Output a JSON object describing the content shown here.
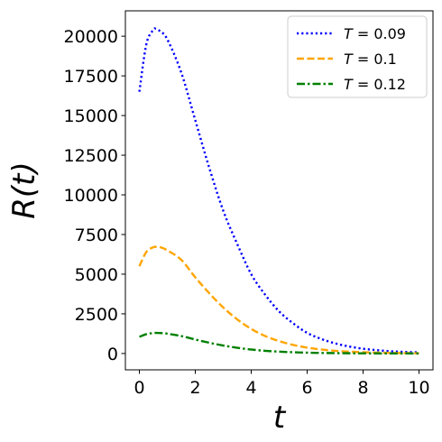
{
  "chart_data": {
    "type": "line",
    "xlabel": "t",
    "ylabel": "R(t)",
    "xlim": [
      -0.5,
      10.5
    ],
    "ylim": [
      -1030,
      21600
    ],
    "xticks": [
      0,
      2,
      4,
      6,
      8,
      10
    ],
    "yticks": [
      0,
      2500,
      5000,
      7500,
      10000,
      12500,
      15000,
      17500,
      20000
    ],
    "grid": false,
    "legend_position": "top-right",
    "series": [
      {
        "name": "T = 0.09",
        "label_var": "T",
        "label_value": "0.09",
        "color": "#0000ff",
        "style": "dotted",
        "x": [
          0,
          0.25,
          0.5,
          0.6,
          0.75,
          1,
          1.5,
          2,
          2.5,
          3,
          3.5,
          4,
          4.5,
          5,
          5.5,
          6,
          6.5,
          7,
          7.5,
          8,
          8.5,
          9,
          9.5,
          10
        ],
        "y": [
          16500,
          19500,
          20400,
          20450,
          20300,
          19800,
          17700,
          14700,
          11700,
          9000,
          6900,
          5000,
          3700,
          2650,
          1900,
          1300,
          920,
          640,
          440,
          300,
          210,
          140,
          100,
          70
        ]
      },
      {
        "name": "T = 0.1",
        "label_var": "T",
        "label_value": "0.1",
        "color": "#ffa500",
        "style": "dashed",
        "x": [
          0,
          0.25,
          0.5,
          0.6,
          0.75,
          1,
          1.5,
          2,
          2.5,
          3,
          3.5,
          4,
          4.5,
          5,
          5.5,
          6,
          6.5,
          7,
          7.5,
          8,
          8.5,
          9,
          9.5,
          10
        ],
        "y": [
          5500,
          6400,
          6700,
          6720,
          6700,
          6500,
          5900,
          4800,
          3800,
          2900,
          2150,
          1550,
          1100,
          780,
          540,
          370,
          250,
          170,
          115,
          80,
          55,
          38,
          26,
          18
        ]
      },
      {
        "name": "T = 0.12",
        "label_var": "T",
        "label_value": "0.12",
        "color": "#008000",
        "style": "dashdot",
        "x": [
          0,
          0.25,
          0.5,
          0.6,
          0.75,
          1,
          1.5,
          2,
          2.5,
          3,
          3.5,
          4,
          4.5,
          5,
          5.5,
          6,
          6.5,
          7,
          7.5,
          8,
          8.5,
          9,
          9.5,
          10
        ],
        "y": [
          1050,
          1220,
          1290,
          1300,
          1290,
          1250,
          1100,
          880,
          680,
          500,
          360,
          250,
          170,
          115,
          78,
          52,
          35,
          23,
          15,
          10,
          7,
          5,
          3,
          2
        ]
      }
    ]
  }
}
